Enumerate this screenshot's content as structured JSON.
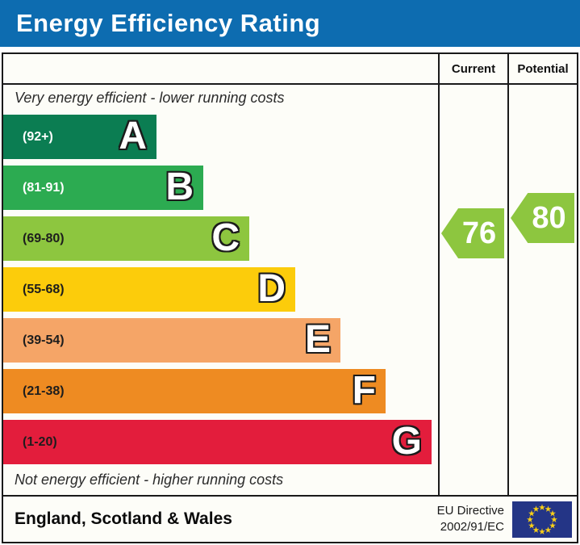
{
  "title_bar": {
    "title": "Energy Efficiency Rating",
    "bg_color": "#0d6cb0"
  },
  "columns": {
    "current_label": "Current",
    "potential_label": "Potential"
  },
  "captions": {
    "top": "Very energy efficient - lower running costs",
    "bottom": "Not energy efficient - higher running costs"
  },
  "bands": [
    {
      "letter": "A",
      "range_label": "(92+)",
      "min": 92,
      "max": 100,
      "color": "#0b7d52",
      "range_text_color": "#ffffff"
    },
    {
      "letter": "B",
      "range_label": "(81-91)",
      "min": 81,
      "max": 91,
      "color": "#2cab51",
      "range_text_color": "#ffffff"
    },
    {
      "letter": "C",
      "range_label": "(69-80)",
      "min": 69,
      "max": 80,
      "color": "#8dc63f",
      "range_text_color": "#1d1d1d"
    },
    {
      "letter": "D",
      "range_label": "(55-68)",
      "min": 55,
      "max": 68,
      "color": "#fccc0b",
      "range_text_color": "#1d1d1d"
    },
    {
      "letter": "E",
      "range_label": "(39-54)",
      "min": 39,
      "max": 54,
      "color": "#f5a567",
      "range_text_color": "#1d1d1d"
    },
    {
      "letter": "F",
      "range_label": "(21-38)",
      "min": 21,
      "max": 38,
      "color": "#ee8b22",
      "range_text_color": "#1d1d1d"
    },
    {
      "letter": "G",
      "range_label": "(1-20)",
      "min": 1,
      "max": 20,
      "color": "#e31d3c",
      "range_text_color": "#1d1d1d"
    }
  ],
  "ratings": {
    "current": {
      "value": 76,
      "color": "#8dc63f"
    },
    "potential": {
      "value": 80,
      "color": "#8dc63f"
    }
  },
  "footer": {
    "region": "England, Scotland & Wales",
    "directive_line1": "EU Directive",
    "directive_line2": "2002/91/EC",
    "flag_bg": "#243586",
    "flag_star_color": "#fcd116"
  },
  "chart_data": {
    "type": "bar",
    "orientation": "horizontal",
    "title": "Energy Efficiency Rating",
    "categories": [
      "A",
      "B",
      "C",
      "D",
      "E",
      "F",
      "G"
    ],
    "band_ranges": [
      "92+",
      "81-91",
      "69-80",
      "55-68",
      "39-54",
      "21-38",
      "1-20"
    ],
    "band_colors": [
      "#0b7d52",
      "#2cab51",
      "#8dc63f",
      "#fccc0b",
      "#f5a567",
      "#ee8b22",
      "#e31d3c"
    ],
    "bar_lengths_relative": [
      0.36,
      0.47,
      0.57,
      0.68,
      0.79,
      0.89,
      1.0
    ],
    "markers": [
      {
        "name": "Current",
        "value": 76,
        "band": "C",
        "color": "#8dc63f"
      },
      {
        "name": "Potential",
        "value": 80,
        "band": "C",
        "color": "#8dc63f"
      }
    ],
    "annotations": [
      "Very energy efficient - lower running costs",
      "Not energy efficient - higher running costs"
    ],
    "footer": "England, Scotland & Wales | EU Directive 2002/91/EC",
    "legend_position": "none",
    "grid": false
  }
}
